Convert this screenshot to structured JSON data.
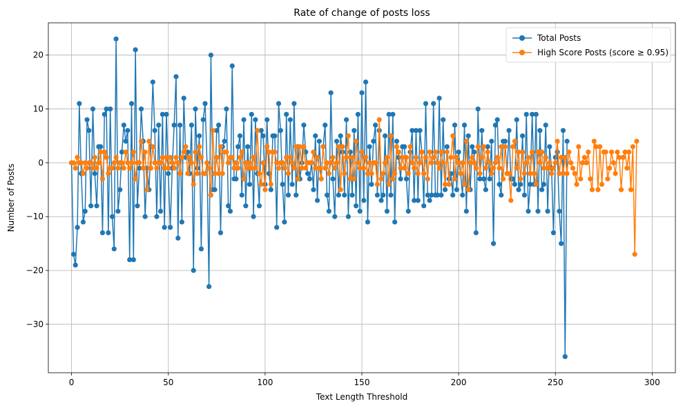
{
  "chart_data": {
    "type": "line",
    "title": "Rate of change of posts loss",
    "xlabel": "Text Length Threshold",
    "ylabel": "Number of Posts",
    "xlim": [
      -12,
      312
    ],
    "ylim": [
      -39,
      26
    ],
    "xticks": [
      0,
      50,
      100,
      150,
      200,
      250,
      300
    ],
    "yticks": [
      -30,
      -20,
      -10,
      0,
      10,
      20
    ],
    "grid": true,
    "legend_position": "top-right",
    "series": [
      {
        "name": "Total Posts",
        "color": "#1f77b4",
        "marker": "circle",
        "x_start": 0,
        "x_step": 1,
        "values": [
          0,
          -17,
          -19,
          -12,
          11,
          -2,
          -11,
          -9,
          8,
          6,
          -8,
          10,
          -2,
          -8,
          3,
          3,
          -13,
          9,
          10,
          -13,
          10,
          -10,
          -16,
          23,
          -9,
          -5,
          2,
          7,
          4,
          6,
          -18,
          11,
          -18,
          21,
          -8,
          -1,
          10,
          4,
          -10,
          -1,
          -5,
          3,
          15,
          6,
          -10,
          7,
          -9,
          9,
          -12,
          9,
          -2,
          -12,
          -1,
          7,
          16,
          -14,
          7,
          -11,
          12,
          1,
          2,
          -2,
          7,
          -20,
          10,
          -1,
          5,
          -16,
          8,
          11,
          0,
          -23,
          20,
          -5,
          -5,
          6,
          7,
          -13,
          3,
          4,
          10,
          -8,
          -9,
          18,
          -3,
          -3,
          3,
          5,
          -6,
          8,
          -8,
          3,
          -4,
          9,
          -10,
          8,
          -2,
          -8,
          6,
          5,
          -4,
          8,
          -2,
          -5,
          5,
          5,
          -12,
          11,
          6,
          -4,
          -11,
          9,
          -6,
          8,
          -4,
          11,
          -6,
          3,
          -3,
          0,
          7,
          2,
          -2,
          -3,
          0,
          -5,
          5,
          -7,
          4,
          -3,
          3,
          7,
          -6,
          -9,
          13,
          -3,
          -10,
          4,
          -6,
          5,
          2,
          -6,
          8,
          -10,
          2,
          -6,
          6,
          -8,
          9,
          -9,
          13,
          -7,
          15,
          -11,
          3,
          -4,
          4,
          7,
          -6,
          6,
          -7,
          -6,
          5,
          -9,
          9,
          -6,
          9,
          -11,
          4,
          1,
          -3,
          3,
          3,
          -3,
          -9,
          2,
          6,
          -7,
          6,
          -7,
          6,
          2,
          -8,
          11,
          -6,
          -7,
          -6,
          11,
          -6,
          -6,
          12,
          -6,
          8,
          -5,
          3,
          -3,
          -2,
          -6,
          7,
          -5,
          2,
          -2,
          -6,
          7,
          -9,
          5,
          -5,
          3,
          2,
          -13,
          10,
          -3,
          6,
          -3,
          -5,
          3,
          -3,
          4,
          -15,
          7,
          8,
          -4,
          -6,
          4,
          4,
          -2,
          6,
          -3,
          -3,
          -4,
          8,
          -5,
          -4,
          5,
          -6,
          9,
          -9,
          -4,
          9,
          -4,
          9,
          -9,
          6,
          -5,
          -4,
          7,
          -9,
          3,
          -1,
          -13,
          1,
          2,
          -9,
          -15,
          6,
          -36,
          4
        ]
      },
      {
        "name": "High Score Posts (score ≥ 0.95)",
        "color": "#ff7f0e",
        "marker": "circle",
        "x_start": 0,
        "x_step": 1,
        "values": [
          0,
          0,
          -1,
          1,
          0,
          0,
          -2,
          0,
          -1,
          0,
          0,
          -1,
          1,
          -1,
          0,
          2,
          -3,
          2,
          1,
          -2,
          -1,
          -1,
          0,
          1,
          -1,
          0,
          0,
          -1,
          2,
          0,
          -1,
          0,
          2,
          -3,
          0,
          0,
          4,
          -1,
          2,
          -5,
          4,
          -1,
          3,
          0,
          -1,
          0,
          0,
          1,
          -1,
          1,
          -1,
          1,
          0,
          -1,
          1,
          0,
          -2,
          1,
          2,
          3,
          -2,
          1,
          0,
          -4,
          2,
          -2,
          3,
          1,
          -2,
          -2,
          0,
          -1,
          -6,
          6,
          -2,
          1,
          -2,
          3,
          -2,
          2,
          2,
          0,
          1,
          1,
          -1,
          0,
          -1,
          1,
          2,
          -3,
          0,
          -1,
          0,
          -1,
          1,
          -1,
          6,
          -2,
          -4,
          0,
          -5,
          3,
          2,
          -4,
          2,
          2,
          0,
          -1,
          0,
          0,
          -1,
          1,
          -2,
          1,
          0,
          -1,
          3,
          -3,
          3,
          -1,
          3,
          -1,
          0,
          0,
          0,
          2,
          -1,
          1,
          -1,
          -3,
          3,
          -1,
          0,
          -2,
          0,
          1,
          -1,
          0,
          3,
          -5,
          3,
          -2,
          1,
          5,
          -3,
          1,
          -3,
          4,
          0,
          -1,
          2,
          -1,
          1,
          -2,
          0,
          -2,
          0,
          0,
          -4,
          8,
          -3,
          -2,
          0,
          1,
          -4,
          5,
          -3,
          -2,
          3,
          2,
          -1,
          1,
          -1,
          1,
          -2,
          3,
          0,
          -1,
          1,
          -2,
          0,
          2,
          -2,
          1,
          -3,
          2,
          0,
          1,
          2,
          0,
          -1,
          2,
          0,
          -4,
          2,
          -4,
          1,
          5,
          -3,
          1,
          0,
          -2,
          0,
          -4,
          4,
          -5,
          0,
          1,
          0,
          -1,
          3,
          -2,
          1,
          3,
          -1,
          2,
          0,
          -2,
          -1,
          0,
          1,
          -1,
          3,
          -3,
          3,
          -2,
          -2,
          -7,
          3,
          4,
          -1,
          2,
          -3,
          2,
          -2,
          0,
          1,
          -2,
          2,
          -2,
          -4,
          2,
          0,
          2,
          -1,
          1,
          -1,
          0,
          -2,
          -1,
          0,
          4,
          -2,
          1,
          -2,
          1,
          -2,
          2,
          0,
          -1,
          -2,
          -4,
          3,
          -3,
          0,
          1,
          0,
          2,
          -3,
          -5,
          4,
          3,
          -5,
          3,
          -4,
          2,
          2,
          -3,
          -1,
          2,
          0,
          -2,
          2,
          1,
          -5,
          1,
          2,
          -1,
          2,
          -5,
          3,
          -17,
          4
        ]
      }
    ]
  }
}
